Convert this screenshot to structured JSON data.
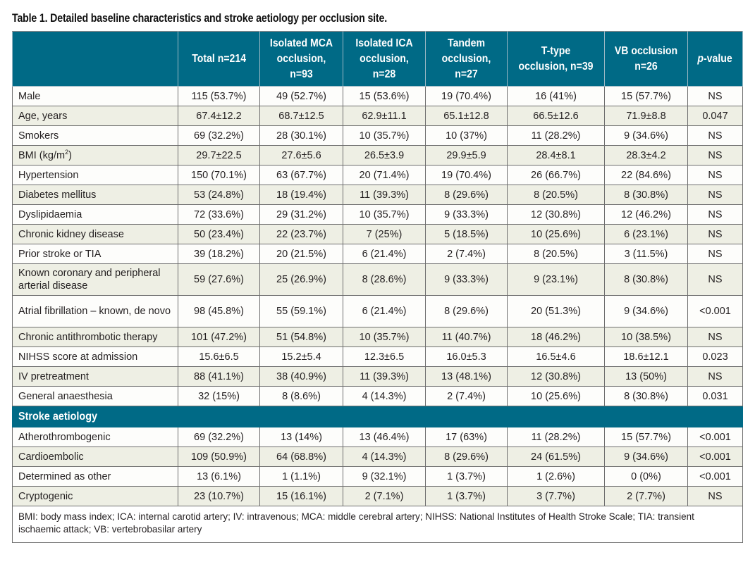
{
  "caption": "Table 1. Detailed baseline characteristics and stroke aetiology per occlusion site.",
  "colors": {
    "header_bg": "#006a86",
    "row_alt_bg": "#eeefe4",
    "row_bg": "#fdfdfb"
  },
  "columns": [
    "",
    "Total n=214",
    "Isolated MCA occlusion, n=93",
    "Isolated ICA occlusion, n=28",
    "Tandem occlusion, n=27",
    "T-type occlusion, n=39",
    "VB occlusion n=26",
    "p-value"
  ],
  "pvalue_header": {
    "italic": "p",
    "rest": "-value"
  },
  "rows": [
    {
      "label": "Male",
      "values": [
        "115 (53.7%)",
        "49 (52.7%)",
        "15 (53.6%)",
        "19 (70.4%)",
        "16 (41%)",
        "15 (57.7%)",
        "NS"
      ]
    },
    {
      "label": "Age, years",
      "values": [
        "67.4±12.2",
        "68.7±12.5",
        "62.9±11.1",
        "65.1±12.8",
        "66.5±12.6",
        "71.9±8.8",
        "0.047"
      ]
    },
    {
      "label": "Smokers",
      "values": [
        "69 (32.2%)",
        "28 (30.1%)",
        "10 (35.7%)",
        "10 (37%)",
        "11 (28.2%)",
        "9 (34.6%)",
        "NS"
      ]
    },
    {
      "label": "BMI (kg/m",
      "label_sup": "2",
      "label_after": ")",
      "values": [
        "29.7±22.5",
        "27.6±5.6",
        "26.5±3.9",
        "29.9±5.9",
        "28.4±8.1",
        "28.3±4.2",
        "NS"
      ]
    },
    {
      "label": "Hypertension",
      "values": [
        "150 (70.1%)",
        "63 (67.7%)",
        "20 (71.4%)",
        "19 (70.4%)",
        "26 (66.7%)",
        "22 (84.6%)",
        "NS"
      ]
    },
    {
      "label": "Diabetes mellitus",
      "values": [
        "53 (24.8%)",
        "18 (19.4%)",
        "11 (39.3%)",
        "8 (29.6%)",
        "8 (20.5%)",
        "8 (30.8%)",
        "NS"
      ]
    },
    {
      "label": "Dyslipidaemia",
      "values": [
        "72 (33.6%)",
        "29 (31.2%)",
        "10 (35.7%)",
        "9 (33.3%)",
        "12 (30.8%)",
        "12 (46.2%)",
        "NS"
      ]
    },
    {
      "label": "Chronic kidney disease",
      "values": [
        "50 (23.4%)",
        "22 (23.7%)",
        "7 (25%)",
        "5 (18.5%)",
        "10 (25.6%)",
        "6 (23.1%)",
        "NS"
      ]
    },
    {
      "label": "Prior stroke or TIA",
      "values": [
        "39 (18.2%)",
        "20 (21.5%)",
        "6 (21.4%)",
        "2 (7.4%)",
        "8 (20.5%)",
        "3 (11.5%)",
        "NS"
      ]
    },
    {
      "label": "Known coronary and peripheral arterial disease",
      "values": [
        "59 (27.6%)",
        "25 (26.9%)",
        "8 (28.6%)",
        "9 (33.3%)",
        "9 (23.1%)",
        "8 (30.8%)",
        "NS"
      ]
    },
    {
      "label": "Atrial fibrillation – known, de novo",
      "values": [
        "98 (45.8%)",
        "55 (59.1%)",
        "6 (21.4%)",
        "8 (29.6%)",
        "20 (51.3%)",
        "9 (34.6%)",
        "<0.001"
      ]
    },
    {
      "label": "Chronic antithrombotic therapy",
      "values": [
        "101 (47.2%)",
        "51 (54.8%)",
        "10 (35.7%)",
        "11 (40.7%)",
        "18 (46.2%)",
        "10 (38.5%)",
        "NS"
      ]
    },
    {
      "label": "NIHSS score at admission",
      "values": [
        "15.6±6.5",
        "15.2±5.4",
        "12.3±6.5",
        "16.0±5.3",
        "16.5±4.6",
        "18.6±12.1",
        "0.023"
      ]
    },
    {
      "label": "IV pretreatment",
      "values": [
        "88 (41.1%)",
        "38 (40.9%)",
        "11 (39.3%)",
        "13 (48.1%)",
        "12 (30.8%)",
        "13 (50%)",
        "NS"
      ]
    },
    {
      "label": "General anaesthesia",
      "values": [
        "32 (15%)",
        "8 (8.6%)",
        "4 (14.3%)",
        "2 (7.4%)",
        "10 (25.6%)",
        "8 (30.8%)",
        "0.031"
      ]
    }
  ],
  "section_title": "Stroke aetiology",
  "aetiology_rows": [
    {
      "label": "Atherothrombogenic",
      "values": [
        "69 (32.2%)",
        "13 (14%)",
        "13 (46.4%)",
        "17 (63%)",
        "11 (28.2%)",
        "15 (57.7%)",
        "<0.001"
      ]
    },
    {
      "label": "Cardioembolic",
      "values": [
        "109 (50.9%)",
        "64 (68.8%)",
        "4 (14.3%)",
        "8 (29.6%)",
        "24 (61.5%)",
        "9 (34.6%)",
        "<0.001"
      ]
    },
    {
      "label": "Determined as other",
      "values": [
        "13 (6.1%)",
        "1 (1.1%)",
        "9 (32.1%)",
        "1 (3.7%)",
        "1 (2.6%)",
        "0 (0%)",
        "<0.001"
      ]
    },
    {
      "label": "Cryptogenic",
      "values": [
        "23 (10.7%)",
        "15 (16.1%)",
        "2 (7.1%)",
        "1 (3.7%)",
        "3 (7.7%)",
        "2 (7.7%)",
        "NS"
      ]
    }
  ],
  "footnote": "BMI: body mass index; ICA: internal carotid artery; IV: intravenous; MCA: middle cerebral artery; NIHSS: National Institutes of Health Stroke Scale; TIA: transient ischaemic attack; VB: vertebrobasilar artery"
}
